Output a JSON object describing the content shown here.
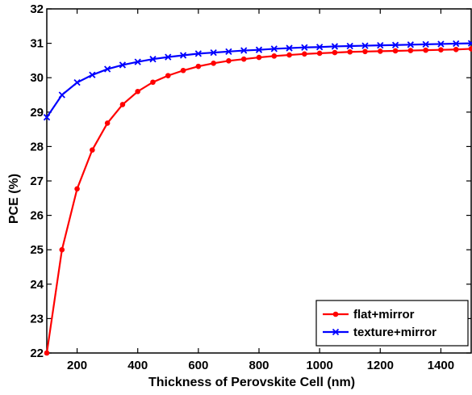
{
  "chart_data": {
    "type": "line",
    "title": "",
    "xlabel": "Thickness of Perovskite Cell (nm)",
    "ylabel": "PCE (%)",
    "xlim": [
      100,
      1500
    ],
    "ylim": [
      22,
      32
    ],
    "xticks": [
      200,
      400,
      600,
      800,
      1000,
      1200,
      1400
    ],
    "yticks": [
      22,
      23,
      24,
      25,
      26,
      27,
      28,
      29,
      30,
      31,
      32
    ],
    "grid": false,
    "legend_position": "bottom-right",
    "x": [
      100,
      150,
      200,
      250,
      300,
      350,
      400,
      450,
      500,
      550,
      600,
      650,
      700,
      750,
      800,
      850,
      900,
      950,
      1000,
      1050,
      1100,
      1150,
      1200,
      1250,
      1300,
      1350,
      1400,
      1450,
      1500
    ],
    "series": [
      {
        "name": "flat+mirror",
        "color": "#ff0000",
        "marker": "dot",
        "values": [
          22.0,
          25.0,
          26.77,
          27.9,
          28.68,
          29.22,
          29.6,
          29.87,
          30.06,
          30.21,
          30.33,
          30.42,
          30.49,
          30.54,
          30.59,
          30.63,
          30.66,
          30.69,
          30.71,
          30.73,
          30.75,
          30.76,
          30.77,
          30.78,
          30.79,
          30.8,
          30.81,
          30.82,
          30.84
        ]
      },
      {
        "name": "texture+mirror",
        "color": "#0000ff",
        "marker": "x",
        "values": [
          28.85,
          29.5,
          29.86,
          30.08,
          30.25,
          30.37,
          30.46,
          30.54,
          30.6,
          30.65,
          30.7,
          30.73,
          30.76,
          30.79,
          30.81,
          30.84,
          30.86,
          30.88,
          30.89,
          30.91,
          30.92,
          30.93,
          30.94,
          30.95,
          30.96,
          30.97,
          30.98,
          30.99,
          31.0
        ]
      }
    ]
  }
}
